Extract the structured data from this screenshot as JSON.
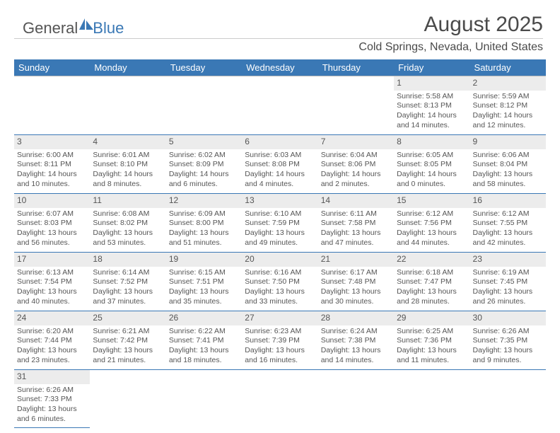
{
  "logo": {
    "word1": "General",
    "word2": "Blue"
  },
  "title": "August 2025",
  "subtitle": "Cold Springs, Nevada, United States",
  "dayNames": [
    "Sunday",
    "Monday",
    "Tuesday",
    "Wednesday",
    "Thursday",
    "Friday",
    "Saturday"
  ],
  "colors": {
    "headerBg": "#3a78b5",
    "headerText": "#ffffff",
    "borderBlue": "#3a78b5",
    "cellNumBg": "#ececec",
    "bodyText": "#555555",
    "pageBg": "#ffffff"
  },
  "weeks": [
    [
      {
        "empty": true
      },
      {
        "empty": true
      },
      {
        "empty": true
      },
      {
        "empty": true
      },
      {
        "empty": true
      },
      {
        "num": "1",
        "sunrise": "Sunrise: 5:58 AM",
        "sunset": "Sunset: 8:13 PM",
        "daylight": "Daylight: 14 hours and 14 minutes."
      },
      {
        "num": "2",
        "sunrise": "Sunrise: 5:59 AM",
        "sunset": "Sunset: 8:12 PM",
        "daylight": "Daylight: 14 hours and 12 minutes."
      }
    ],
    [
      {
        "num": "3",
        "sunrise": "Sunrise: 6:00 AM",
        "sunset": "Sunset: 8:11 PM",
        "daylight": "Daylight: 14 hours and 10 minutes."
      },
      {
        "num": "4",
        "sunrise": "Sunrise: 6:01 AM",
        "sunset": "Sunset: 8:10 PM",
        "daylight": "Daylight: 14 hours and 8 minutes."
      },
      {
        "num": "5",
        "sunrise": "Sunrise: 6:02 AM",
        "sunset": "Sunset: 8:09 PM",
        "daylight": "Daylight: 14 hours and 6 minutes."
      },
      {
        "num": "6",
        "sunrise": "Sunrise: 6:03 AM",
        "sunset": "Sunset: 8:08 PM",
        "daylight": "Daylight: 14 hours and 4 minutes."
      },
      {
        "num": "7",
        "sunrise": "Sunrise: 6:04 AM",
        "sunset": "Sunset: 8:06 PM",
        "daylight": "Daylight: 14 hours and 2 minutes."
      },
      {
        "num": "8",
        "sunrise": "Sunrise: 6:05 AM",
        "sunset": "Sunset: 8:05 PM",
        "daylight": "Daylight: 14 hours and 0 minutes."
      },
      {
        "num": "9",
        "sunrise": "Sunrise: 6:06 AM",
        "sunset": "Sunset: 8:04 PM",
        "daylight": "Daylight: 13 hours and 58 minutes."
      }
    ],
    [
      {
        "num": "10",
        "sunrise": "Sunrise: 6:07 AM",
        "sunset": "Sunset: 8:03 PM",
        "daylight": "Daylight: 13 hours and 56 minutes."
      },
      {
        "num": "11",
        "sunrise": "Sunrise: 6:08 AM",
        "sunset": "Sunset: 8:02 PM",
        "daylight": "Daylight: 13 hours and 53 minutes."
      },
      {
        "num": "12",
        "sunrise": "Sunrise: 6:09 AM",
        "sunset": "Sunset: 8:00 PM",
        "daylight": "Daylight: 13 hours and 51 minutes."
      },
      {
        "num": "13",
        "sunrise": "Sunrise: 6:10 AM",
        "sunset": "Sunset: 7:59 PM",
        "daylight": "Daylight: 13 hours and 49 minutes."
      },
      {
        "num": "14",
        "sunrise": "Sunrise: 6:11 AM",
        "sunset": "Sunset: 7:58 PM",
        "daylight": "Daylight: 13 hours and 47 minutes."
      },
      {
        "num": "15",
        "sunrise": "Sunrise: 6:12 AM",
        "sunset": "Sunset: 7:56 PM",
        "daylight": "Daylight: 13 hours and 44 minutes."
      },
      {
        "num": "16",
        "sunrise": "Sunrise: 6:12 AM",
        "sunset": "Sunset: 7:55 PM",
        "daylight": "Daylight: 13 hours and 42 minutes."
      }
    ],
    [
      {
        "num": "17",
        "sunrise": "Sunrise: 6:13 AM",
        "sunset": "Sunset: 7:54 PM",
        "daylight": "Daylight: 13 hours and 40 minutes."
      },
      {
        "num": "18",
        "sunrise": "Sunrise: 6:14 AM",
        "sunset": "Sunset: 7:52 PM",
        "daylight": "Daylight: 13 hours and 37 minutes."
      },
      {
        "num": "19",
        "sunrise": "Sunrise: 6:15 AM",
        "sunset": "Sunset: 7:51 PM",
        "daylight": "Daylight: 13 hours and 35 minutes."
      },
      {
        "num": "20",
        "sunrise": "Sunrise: 6:16 AM",
        "sunset": "Sunset: 7:50 PM",
        "daylight": "Daylight: 13 hours and 33 minutes."
      },
      {
        "num": "21",
        "sunrise": "Sunrise: 6:17 AM",
        "sunset": "Sunset: 7:48 PM",
        "daylight": "Daylight: 13 hours and 30 minutes."
      },
      {
        "num": "22",
        "sunrise": "Sunrise: 6:18 AM",
        "sunset": "Sunset: 7:47 PM",
        "daylight": "Daylight: 13 hours and 28 minutes."
      },
      {
        "num": "23",
        "sunrise": "Sunrise: 6:19 AM",
        "sunset": "Sunset: 7:45 PM",
        "daylight": "Daylight: 13 hours and 26 minutes."
      }
    ],
    [
      {
        "num": "24",
        "sunrise": "Sunrise: 6:20 AM",
        "sunset": "Sunset: 7:44 PM",
        "daylight": "Daylight: 13 hours and 23 minutes."
      },
      {
        "num": "25",
        "sunrise": "Sunrise: 6:21 AM",
        "sunset": "Sunset: 7:42 PM",
        "daylight": "Daylight: 13 hours and 21 minutes."
      },
      {
        "num": "26",
        "sunrise": "Sunrise: 6:22 AM",
        "sunset": "Sunset: 7:41 PM",
        "daylight": "Daylight: 13 hours and 18 minutes."
      },
      {
        "num": "27",
        "sunrise": "Sunrise: 6:23 AM",
        "sunset": "Sunset: 7:39 PM",
        "daylight": "Daylight: 13 hours and 16 minutes."
      },
      {
        "num": "28",
        "sunrise": "Sunrise: 6:24 AM",
        "sunset": "Sunset: 7:38 PM",
        "daylight": "Daylight: 13 hours and 14 minutes."
      },
      {
        "num": "29",
        "sunrise": "Sunrise: 6:25 AM",
        "sunset": "Sunset: 7:36 PM",
        "daylight": "Daylight: 13 hours and 11 minutes."
      },
      {
        "num": "30",
        "sunrise": "Sunrise: 6:26 AM",
        "sunset": "Sunset: 7:35 PM",
        "daylight": "Daylight: 13 hours and 9 minutes."
      }
    ],
    [
      {
        "num": "31",
        "sunrise": "Sunrise: 6:26 AM",
        "sunset": "Sunset: 7:33 PM",
        "daylight": "Daylight: 13 hours and 6 minutes."
      }
    ]
  ]
}
